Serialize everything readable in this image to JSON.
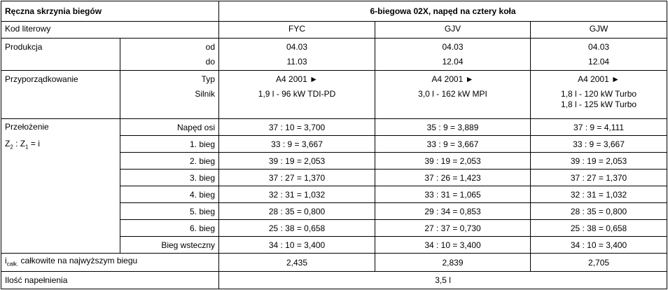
{
  "header": {
    "title": "Ręczna skrzynia biegów",
    "subtitle": "6-biegowa 02X, napęd na cztery koła"
  },
  "code": {
    "label": "Kod literowy",
    "values": [
      "FYC",
      "GJV",
      "GJW"
    ]
  },
  "production": {
    "label": "Produkcja",
    "from_label": "od",
    "to_label": "do",
    "from": [
      "04.03",
      "04.03",
      "04.03"
    ],
    "to": [
      "11.03",
      "12.04",
      "12.04"
    ]
  },
  "assignment": {
    "label": "Przyporządkowanie",
    "type_label": "Typ",
    "engine_label": "Silnik",
    "types": [
      "A4 2001 ►",
      "A4 2001 ►",
      "A4 2001 ►"
    ],
    "engines": [
      [
        "1,9 l - 96 kW TDI-PD"
      ],
      [
        "3,0 l - 162 kW MPI"
      ],
      [
        "1,8 l - 120 kW Turbo",
        "1,8 l - 125 kW Turbo"
      ]
    ]
  },
  "ratios": {
    "label": "Przełożenie",
    "formula": [
      "Z",
      "2",
      " : Z",
      "1",
      " = i"
    ],
    "rows": [
      {
        "label": "Napęd osi",
        "values": [
          "37 : 10 = 3,700",
          "35 : 9 = 3,889",
          "37 : 9 = 4,111"
        ]
      },
      {
        "label": "1. bieg",
        "values": [
          "33 : 9 = 3,667",
          "33 : 9 = 3,667",
          "33 : 9 = 3,667"
        ]
      },
      {
        "label": "2. bieg",
        "values": [
          "39 : 19 = 2,053",
          "39 : 19 = 2,053",
          "39 : 19 = 2,053"
        ]
      },
      {
        "label": "3. bieg",
        "values": [
          "37 : 27 = 1,370",
          "37 : 26 = 1,423",
          "37 : 27 = 1,370"
        ]
      },
      {
        "label": "4. bieg",
        "values": [
          "32 : 31 = 1,032",
          "33 : 31 = 1,065",
          "32 : 31 = 1,032"
        ]
      },
      {
        "label": "5. bieg",
        "values": [
          "28 : 35 = 0,800",
          "29 : 34 = 0,853",
          "28 : 35 = 0,800"
        ]
      },
      {
        "label": "6. bieg",
        "values": [
          "25 : 38 = 0,658",
          "27 : 37 = 0,730",
          "25 : 38 = 0,658"
        ]
      },
      {
        "label": "Bieg wsteczny",
        "values": [
          "34 : 10 = 3,400",
          "34 : 10 = 3,400",
          "34 : 10 = 3,400"
        ]
      }
    ]
  },
  "total": {
    "label": [
      "i",
      "całk.",
      " całkowite na najwyższym biegu"
    ],
    "values": [
      "2,435",
      "2,839",
      "2,705"
    ]
  },
  "fill": {
    "label": "Ilość napełnienia",
    "value": "3,5 l"
  }
}
